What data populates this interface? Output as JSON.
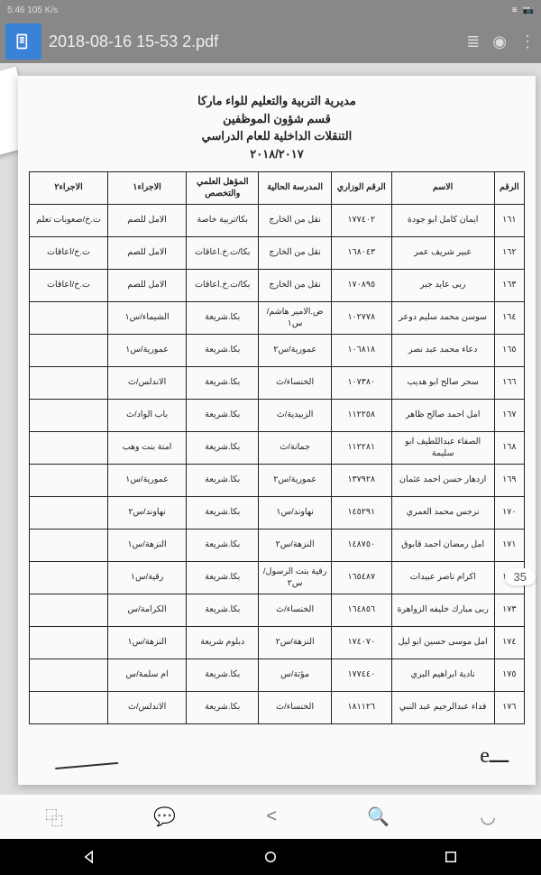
{
  "status": {
    "left": "5:46   105 K/s",
    "right_icons": [
      "list",
      "camera"
    ],
    "menu": "⋮"
  },
  "file": {
    "title": "2018-08-16 15-53 2.pdf"
  },
  "header": {
    "line1": "مديرية التربية والتعليم للواء ماركا",
    "line2": "قسم شؤون الموظفين",
    "line3": "التنقلات الداخلية للعام الدراسي",
    "line4": "٢٠١٨/٢٠١٧"
  },
  "columns": [
    "الرقم",
    "الاسم",
    "الرقم الوزاري",
    "المدرسة الحالية",
    "المؤهل العلمي والتخصص",
    "الاجراء١",
    "الاجراء٢"
  ],
  "col_classes": [
    "col-num",
    "col-name",
    "col-min",
    "col-school",
    "col-qual",
    "col-a1",
    "col-a2"
  ],
  "rows": [
    [
      "١٦١",
      "ايمان كامل ابو جودة",
      "١٧٧٤٠٢",
      "نقل من الخارج",
      "بكا/تربية خاصة",
      "الامل للصم",
      "ت.خ/صعوبات تعلم"
    ],
    [
      "١٦٢",
      "عبير شريف عمر",
      "١٦٨٠٤٣",
      "نقل من الخارج",
      "بكا/ت.خ.اعاقات",
      "الامل للصم",
      "ت.خ/اعاقات"
    ],
    [
      "١٦٣",
      "ربى عايد جبر",
      "١٧٠٨٩٥",
      "نقل من الخارج",
      "بكا/ت.خ.اعاقات",
      "الامل للصم",
      "ت.خ/اعاقات"
    ],
    [
      "١٦٤",
      "سوسن محمد سليم دوعر",
      "١٠٢٧٧٨",
      "ض.الامير هاشم/س١",
      "بكا.شريعة",
      "الشيماء/س١",
      ""
    ],
    [
      "١٦٥",
      "دعاء محمد عبد نصر",
      "١٠٦٨١٨",
      "عمورية/س٢",
      "بكا.شريعة",
      "عمورية/س١",
      ""
    ],
    [
      "١٦٦",
      "سحر صالح ابو هديب",
      "١٠٧٣٨٠",
      "الخنساء/ث",
      "بكا.شريعة",
      "الاندلس/ث",
      ""
    ],
    [
      "١٦٧",
      "امل احمد صالح ظاهر",
      "١١٢٢٥٨",
      "الزبيدية/ث",
      "بكا.شريعة",
      "باب الواد/ث",
      ""
    ],
    [
      "١٦٨",
      "الصفاء عبداللطيف ابو سليمة",
      "١١٢٢٨١",
      "جمانة/ث",
      "بكا.شريعة",
      "امنة بنت وهب",
      ""
    ],
    [
      "١٦٩",
      "ازدهار حسن احمد عثمان",
      "١٣٧٩٢٨",
      "عمورية/س٢",
      "بكا.شريعة",
      "عمورية/س١",
      ""
    ],
    [
      "١٧٠",
      "نرجس محمد العمري",
      "١٤٥٢٩١",
      "نهاوند/س١",
      "بكا.شريعة",
      "نهاوند/س٢",
      ""
    ],
    [
      "١٧١",
      "امل رمضان احمد قابوق",
      "١٤٨٧٥٠",
      "النزهة/س٢",
      "بكا.شريعة",
      "النزهة/س١",
      ""
    ],
    [
      "١٧٢",
      "اكرام ناصر عبيدات",
      "١٦٥٤٨٧",
      "رقية بنت الرسول/س٢",
      "بكا.شريعة",
      "رقية/س١",
      ""
    ],
    [
      "١٧٣",
      "ربى مبارك خليفه الزواهرة",
      "١٦٤٨٥٦",
      "الخنساء/ث",
      "بكا.شريعة",
      "الكرامة/س",
      ""
    ],
    [
      "١٧٤",
      "امل موسى حسين ابو ليل",
      "١٧٤٠٧٠",
      "النزهة/س٢",
      "دبلوم شريعة",
      "النزهة/س١",
      ""
    ],
    [
      "١٧٥",
      "نادية ابراهيم البري",
      "١٧٧٤٤٠",
      "مؤتة/س",
      "بكا.شريعة",
      "ام سلمة/س",
      ""
    ],
    [
      "١٧٦",
      "فداء عبدالرحيم عبد النبي",
      "١٨١١٢٦",
      "الخنساء/ث",
      "بكا.شريعة",
      "الاندلس/ث",
      ""
    ]
  ],
  "page_badge": "35",
  "style": {
    "status_bg": "#888",
    "topbar_bg": "#888",
    "docmenu_bg": "#3a81d8",
    "content_bg": "#ddd",
    "page_bg": "#fafafa",
    "table_border": "#222",
    "font_size_pt": 9.5
  }
}
